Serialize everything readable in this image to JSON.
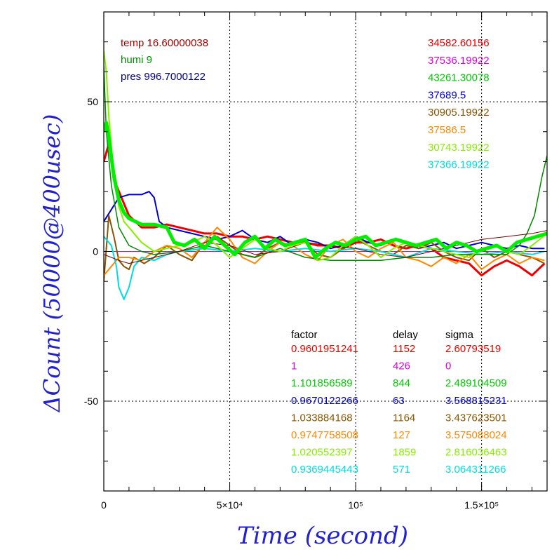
{
  "chart_data": {
    "type": "line",
    "xlabel": "Time (second)",
    "ylabel": "ΔCount (50000@400usec)",
    "xlim": [
      0,
      176000
    ],
    "ylim": [
      -80,
      80
    ],
    "x_ticks": [
      {
        "value": 0,
        "label": "0"
      },
      {
        "value": 50000,
        "label": "5×10⁴"
      },
      {
        "value": 100000,
        "label": "10⁵"
      },
      {
        "value": 150000,
        "label": "1.5×10⁵"
      }
    ],
    "y_ticks": [
      {
        "value": -50,
        "label": "-50"
      },
      {
        "value": 0,
        "label": "0"
      },
      {
        "value": 50,
        "label": "50"
      }
    ],
    "grid": true,
    "env": [
      {
        "text": "temp 16.60000038",
        "color": "#aa0000"
      },
      {
        "text": "humi 9",
        "color": "#008800"
      },
      {
        "text": "pres 996.7000122",
        "color": "#000088"
      }
    ],
    "totals": [
      {
        "text": "34582.60156",
        "color": "#ee0000"
      },
      {
        "text": "37536.19922",
        "color": "#dd00dd"
      },
      {
        "text": "43261.30078",
        "color": "#00cc00"
      },
      {
        "text": "37689.5",
        "color": "#0000cc"
      },
      {
        "text": "30905.19922",
        "color": "#885500"
      },
      {
        "text": "37586.5",
        "color": "#ff8800"
      },
      {
        "text": "30743.19922",
        "color": "#88ee00"
      },
      {
        "text": "37366.19922",
        "color": "#00dddd"
      }
    ],
    "table": {
      "headers": [
        "factor",
        "delay",
        "sigma"
      ],
      "rows": [
        {
          "factor": "0.9601951241",
          "delay": "1152",
          "sigma": "2.60793519",
          "color": "#ee0000"
        },
        {
          "factor": "1",
          "delay": "426",
          "sigma": "0",
          "color": "#dd00dd"
        },
        {
          "factor": "1.101856589",
          "delay": "844",
          "sigma": "2.489104509",
          "color": "#00cc00"
        },
        {
          "factor": "0.9670122266",
          "delay": "63",
          "sigma": "3.568815231",
          "color": "#0000cc"
        },
        {
          "factor": "1.033884168",
          "delay": "1164",
          "sigma": "3.437623501",
          "color": "#885500"
        },
        {
          "factor": "0.9747758508",
          "delay": "127",
          "sigma": "3.575088024",
          "color": "#ff8800"
        },
        {
          "factor": "1.020552397",
          "delay": "1859",
          "sigma": "2.816036463",
          "color": "#88ee00"
        },
        {
          "factor": "0.9369445443",
          "delay": "571",
          "sigma": "3.064311266",
          "color": "#00dddd"
        }
      ]
    },
    "series": [
      {
        "color": "#ee0000",
        "width": 3,
        "x": [
          0,
          2000,
          5000,
          10000,
          15000,
          20000,
          25000,
          30000,
          35000,
          40000,
          45000,
          50000,
          55000,
          60000,
          65000,
          70000,
          75000,
          80000,
          85000,
          90000,
          95000,
          100000,
          105000,
          110000,
          115000,
          120000,
          125000,
          130000,
          135000,
          140000,
          145000,
          150000,
          155000,
          160000,
          165000,
          170000,
          175000
        ],
        "y": [
          30,
          36,
          22,
          12,
          8,
          8,
          9,
          8,
          7,
          6,
          6,
          5,
          5,
          4,
          5,
          4,
          3,
          3,
          2,
          2,
          1,
          3,
          3,
          4,
          2,
          1,
          2,
          1,
          -2,
          -3,
          -4,
          -8,
          -5,
          -3,
          -5,
          -8,
          -4
        ]
      },
      {
        "color": "#dd00dd",
        "width": 1,
        "x": [
          0,
          176000
        ],
        "y": [
          0,
          0
        ]
      },
      {
        "color": "#0000cc",
        "width": 2,
        "x": [
          0,
          3000,
          6000,
          10000,
          15000,
          18000,
          20000,
          22000,
          25000,
          30000,
          35000,
          40000,
          45000,
          50000,
          55000,
          60000,
          65000,
          70000,
          75000,
          80000,
          85000,
          90000,
          95000,
          100000,
          105000,
          110000,
          115000,
          120000,
          125000,
          130000,
          135000,
          140000,
          145000,
          150000,
          155000,
          160000,
          165000,
          170000,
          175000
        ],
        "y": [
          10,
          14,
          18,
          19,
          19,
          20,
          18,
          10,
          8,
          7,
          6,
          5,
          4,
          5,
          7,
          4,
          3,
          5,
          2,
          4,
          3,
          1,
          2,
          5,
          3,
          2,
          4,
          3,
          1,
          2,
          3,
          1,
          2,
          3,
          2,
          1,
          2,
          1,
          1
        ]
      },
      {
        "color": "#885500",
        "width": 2,
        "x": [
          0,
          2000,
          4000,
          6000,
          8000,
          10000,
          12000,
          16000,
          20000,
          25000,
          30000,
          35000,
          40000,
          45000,
          50000,
          55000,
          60000,
          65000,
          70000,
          75000,
          80000,
          85000,
          90000,
          95000,
          100000,
          105000,
          110000,
          115000,
          120000,
          125000,
          130000,
          135000,
          140000,
          145000,
          150000,
          155000,
          160000,
          165000,
          170000,
          175000
        ],
        "y": [
          -10,
          12,
          5,
          -3,
          -5,
          -6,
          -2,
          -4,
          -2,
          2,
          -1,
          -3,
          3,
          5,
          2,
          -1,
          -2,
          1,
          3,
          2,
          3,
          -1,
          -2,
          1,
          4,
          2,
          0,
          -1,
          2,
          1,
          3,
          0,
          -2,
          -3,
          1,
          -2,
          0,
          -1,
          -2,
          -4
        ]
      },
      {
        "color": "#ff8800",
        "width": 2,
        "x": [
          0,
          3000,
          6000,
          10000,
          15000,
          20000,
          25000,
          30000,
          35000,
          40000,
          45000,
          50000,
          55000,
          60000,
          65000,
          70000,
          75000,
          80000,
          85000,
          90000,
          95000,
          100000,
          105000,
          110000,
          115000,
          120000,
          125000,
          130000,
          135000,
          140000,
          145000,
          150000,
          155000,
          160000,
          165000,
          170000,
          175000
        ],
        "y": [
          -8,
          -5,
          -2,
          -2,
          -3,
          0,
          2,
          1,
          -2,
          3,
          8,
          4,
          -2,
          -4,
          0,
          3,
          2,
          -1,
          -3,
          2,
          4,
          0,
          -2,
          1,
          3,
          -2,
          -3,
          -5,
          -2,
          -4,
          -1,
          -6,
          -3,
          -1,
          -4,
          -2,
          -3
        ]
      },
      {
        "color": "#00dddd",
        "width": 2,
        "x": [
          0,
          3000,
          5000,
          6000,
          8000,
          10000,
          12000,
          15000,
          20000,
          25000,
          30000,
          40000,
          50000,
          60000,
          70000,
          80000,
          90000,
          100000,
          110000,
          120000,
          130000,
          140000,
          150000,
          160000,
          170000,
          175000
        ],
        "y": [
          5,
          2,
          -5,
          -12,
          -16,
          -12,
          -5,
          -2,
          -3,
          -1,
          0,
          1,
          0,
          1,
          0,
          1,
          0,
          1,
          0,
          -2,
          1,
          0,
          -1,
          0,
          -1,
          0
        ]
      },
      {
        "color": "#008800",
        "width": 1.5,
        "x": [
          0,
          1000,
          3000,
          6000,
          10000,
          15000,
          20000,
          30000,
          40000,
          50000,
          60000,
          70000,
          80000,
          90000,
          100000,
          110000,
          120000,
          130000,
          140000,
          150000,
          160000,
          165000,
          168000,
          171000,
          174000,
          176000
        ],
        "y": [
          62,
          40,
          22,
          8,
          2,
          0,
          -1,
          0,
          2,
          0,
          -2,
          1,
          -2,
          -3,
          -3,
          -3,
          -2,
          -2,
          -1,
          -1,
          -1,
          2,
          6,
          12,
          25,
          32
        ]
      },
      {
        "color": "#770000",
        "width": 1,
        "x": [
          0,
          3000,
          6000,
          10000,
          15000,
          20000,
          25000,
          30000,
          40000,
          50000,
          60000,
          70000,
          80000,
          90000,
          100000,
          110000,
          120000,
          130000,
          140000,
          150000,
          160000,
          170000,
          176000
        ],
        "y": [
          -1,
          -2,
          -3,
          -4,
          -3,
          -2,
          -1,
          0,
          3,
          2,
          -1,
          0,
          3,
          2,
          1,
          -1,
          -2,
          0,
          2,
          4,
          5,
          6,
          7
        ]
      },
      {
        "color": "#88ee00",
        "width": 2,
        "x": [
          0,
          1000,
          2000,
          4000,
          6000,
          8000,
          10000,
          15000,
          20000,
          25000,
          30000,
          35000,
          40000,
          45000,
          50000,
          55000,
          60000,
          65000,
          70000,
          75000,
          80000,
          85000,
          90000,
          95000,
          100000,
          105000,
          110000,
          115000,
          120000,
          125000,
          130000,
          135000,
          140000,
          145000,
          150000,
          155000,
          160000,
          165000,
          170000,
          176000
        ],
        "y": [
          67,
          60,
          45,
          25,
          15,
          10,
          8,
          3,
          0,
          1,
          2,
          3,
          5,
          2,
          -2,
          1,
          4,
          1,
          0,
          2,
          3,
          -3,
          -2,
          2,
          5,
          2,
          -2,
          1,
          3,
          2,
          1,
          0,
          -1,
          -2,
          1,
          2,
          0,
          -1,
          2,
          6
        ]
      },
      {
        "color": "#00ee00",
        "width": 5,
        "x": [
          0,
          1000,
          2000,
          4000,
          6000,
          8000,
          10000,
          15000,
          20000,
          25000,
          28000,
          32000,
          36000,
          40000,
          44000,
          48000,
          52000,
          56000,
          60000,
          64000,
          68000,
          72000,
          76000,
          80000,
          84000,
          88000,
          92000,
          96000,
          100000,
          104000,
          108000,
          112000,
          116000,
          120000,
          124000,
          128000,
          132000,
          136000,
          140000,
          144000,
          148000,
          152000,
          156000,
          160000,
          164000,
          168000,
          172000,
          176000
        ],
        "y": [
          40,
          43,
          38,
          25,
          17,
          13,
          11,
          9,
          9,
          8,
          3,
          2,
          4,
          1,
          5,
          2,
          -1,
          3,
          5,
          1,
          4,
          2,
          3,
          4,
          -2,
          1,
          3,
          2,
          4,
          5,
          2,
          3,
          4,
          3,
          2,
          3,
          4,
          1,
          3,
          2,
          0,
          1,
          2,
          0,
          3,
          4,
          5,
          6
        ]
      }
    ]
  }
}
